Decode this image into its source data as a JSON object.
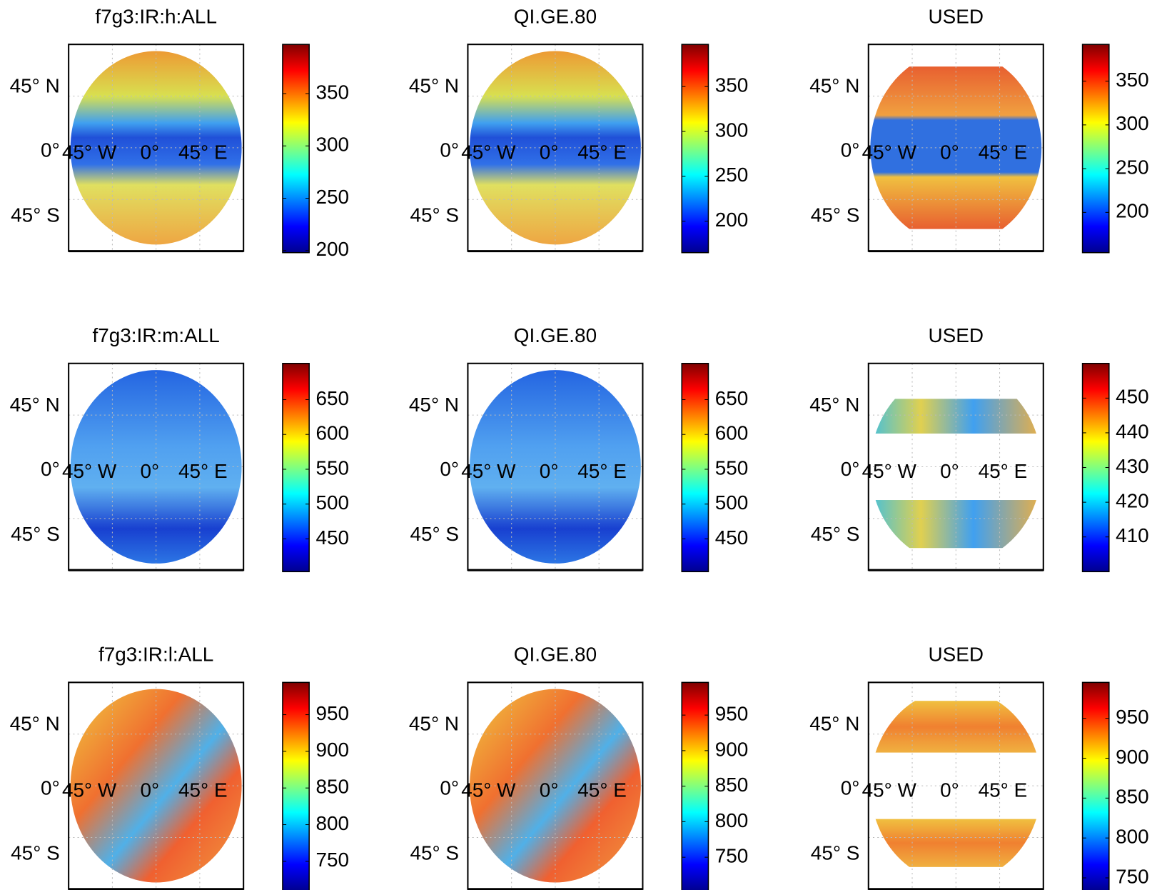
{
  "chart_data": [
    {
      "type": "map",
      "title": "f7g3:IR:h:ALL",
      "clim": [
        198,
        397
      ],
      "cticks": [
        200,
        250,
        300,
        350
      ],
      "lat_labels": [
        "45° N",
        "0°",
        "45° S"
      ],
      "lon_labels": [
        "45° W",
        "0°",
        "45° E"
      ]
    },
    {
      "type": "map",
      "title": "QI.GE.80",
      "clim": [
        165,
        397
      ],
      "cticks": [
        200,
        250,
        300,
        350
      ],
      "lat_labels": [
        "45° N",
        "0°",
        "45° S"
      ],
      "lon_labels": [
        "45° W",
        "0°",
        "45° E"
      ]
    },
    {
      "type": "map",
      "title": "USED",
      "clim": [
        154,
        392
      ],
      "cticks": [
        200,
        250,
        300,
        350
      ],
      "lat_labels": [
        "45° N",
        "0°",
        "45° S"
      ],
      "lon_labels": [
        "45° W",
        "0°",
        "45° E"
      ]
    },
    {
      "type": "map",
      "title": "f7g3:IR:m:ALL",
      "clim": [
        403,
        702
      ],
      "cticks": [
        450,
        500,
        550,
        600,
        650
      ],
      "lat_labels": [
        "45° N",
        "0°",
        "45° S"
      ],
      "lon_labels": [
        "45° W",
        "0°",
        "45° E"
      ]
    },
    {
      "type": "map",
      "title": "QI.GE.80",
      "clim": [
        403,
        702
      ],
      "cticks": [
        450,
        500,
        550,
        600,
        650
      ],
      "lat_labels": [
        "45° N",
        "0°",
        "45° S"
      ],
      "lon_labels": [
        "45° W",
        "0°",
        "45° E"
      ]
    },
    {
      "type": "map",
      "title": "USED",
      "clim": [
        400,
        460
      ],
      "cticks": [
        410,
        420,
        430,
        440,
        450
      ],
      "lat_labels": [
        "45° N",
        "0°",
        "45° S"
      ],
      "lon_labels": [
        "45° W",
        "0°",
        "45° E"
      ]
    },
    {
      "type": "map",
      "title": "f7g3:IR:l:ALL",
      "clim": [
        710,
        994
      ],
      "cticks": [
        750,
        800,
        850,
        900,
        950
      ],
      "lat_labels": [
        "45° N",
        "0°",
        "45° S"
      ],
      "lon_labels": [
        "45° W",
        "0°",
        "45° E"
      ]
    },
    {
      "type": "map",
      "title": "QI.GE.80",
      "clim": [
        703,
        996
      ],
      "cticks": [
        750,
        800,
        850,
        900,
        950
      ],
      "lat_labels": [
        "45° N",
        "0°",
        "45° S"
      ],
      "lon_labels": [
        "45° W",
        "0°",
        "45° E"
      ]
    },
    {
      "type": "map",
      "title": "USED",
      "clim": [
        734,
        995
      ],
      "cticks": [
        750,
        800,
        850,
        900,
        950
      ],
      "lat_labels": [
        "45° N",
        "0°",
        "45° S"
      ],
      "lon_labels": [
        "45° W",
        "0°",
        "45° E"
      ]
    }
  ]
}
